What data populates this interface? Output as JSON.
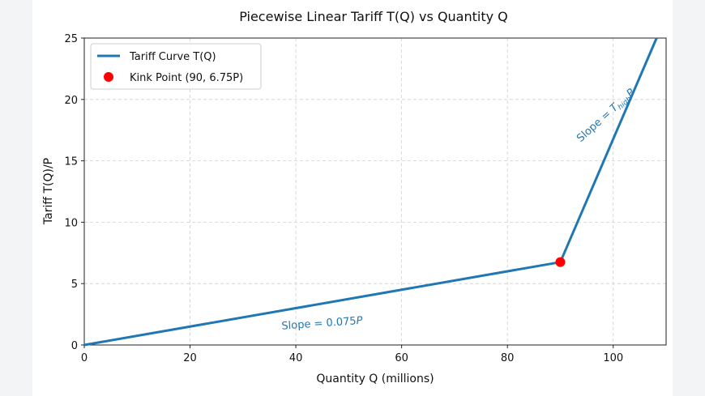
{
  "chart_data": {
    "type": "line",
    "title": "Piecewise Linear Tariff T(Q) vs Quantity Q",
    "xlabel": "Quantity Q (millions)",
    "ylabel": "Tariff T(Q)/P",
    "xlim": [
      0,
      110
    ],
    "ylim": [
      0,
      25
    ],
    "xticks": [
      0,
      20,
      40,
      60,
      80,
      100
    ],
    "yticks": [
      0,
      5,
      10,
      15,
      20,
      25
    ],
    "grid": true,
    "legend_position": "top-left",
    "series": [
      {
        "name": "Tariff Curve T(Q)",
        "color": "#1f77b4",
        "x": [
          0,
          90,
          108.2
        ],
        "y": [
          0,
          6.75,
          25
        ]
      }
    ],
    "points": [
      {
        "name": "Kink Point (90, 6.75P)",
        "x": 90,
        "y": 6.75,
        "color": "#ff0000"
      }
    ],
    "annotations": [
      {
        "text": "Slope = 0.075P",
        "x": 45,
        "y": 1.5,
        "color": "#1f77b4"
      },
      {
        "text": "Slope = T_high P",
        "x": 99,
        "y": 18.5,
        "color": "#1f77b4"
      }
    ]
  }
}
